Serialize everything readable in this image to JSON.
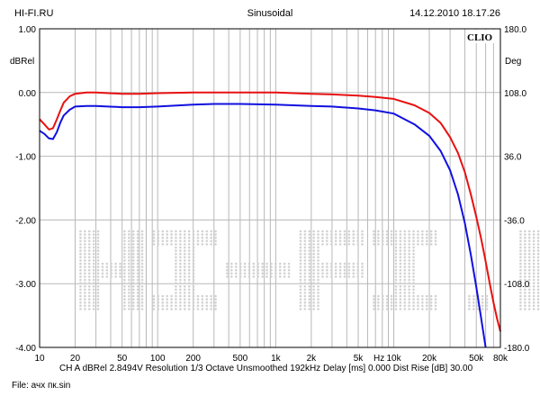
{
  "header": {
    "left": "HI-FI.RU",
    "center": "Sinusoidal",
    "right": "14.12.2010 18.17.26"
  },
  "footer": {
    "info": "CH A   dBRel 2.8494V   Resolution 1/3 Octave    Unsmoothed    192kHz    Delay [ms] 0.000    Dist Rise [dB] 30.00",
    "file": "File: ачх пк.sin"
  },
  "logo": "CLIO",
  "watermark": "HI-FI.RU",
  "colors": {
    "red": "#e81010",
    "blue": "#1010e0",
    "grid": "#b8b8b8",
    "frame": "#000000"
  },
  "chart_data": {
    "type": "line",
    "xscale": "log",
    "xlim": [
      10,
      80000
    ],
    "ylim": [
      -4,
      1
    ],
    "y2lim": [
      -180,
      180
    ],
    "ylabel": "dBRel",
    "y2label": "Deg",
    "grid": true,
    "xticks": [
      {
        "v": 10,
        "l": "10"
      },
      {
        "v": 20,
        "l": "20"
      },
      {
        "v": 50,
        "l": "50"
      },
      {
        "v": 100,
        "l": "100"
      },
      {
        "v": 200,
        "l": "200"
      },
      {
        "v": 500,
        "l": "500"
      },
      {
        "v": 1000,
        "l": "1k"
      },
      {
        "v": 2000,
        "l": "2k"
      },
      {
        "v": 5000,
        "l": "5k"
      },
      {
        "v": 7500,
        "l": "Hz"
      },
      {
        "v": 10000,
        "l": "10k"
      },
      {
        "v": 20000,
        "l": "20k"
      },
      {
        "v": 50000,
        "l": "50k"
      },
      {
        "v": 80000,
        "l": "80k"
      }
    ],
    "yticks": [
      {
        "v": 1,
        "l": "1.00"
      },
      {
        "v": 0,
        "l": "0.00"
      },
      {
        "v": -1,
        "l": "-1.00"
      },
      {
        "v": -2,
        "l": "-2.00"
      },
      {
        "v": -3,
        "l": "-3.00"
      },
      {
        "v": -4,
        "l": "-4.00"
      }
    ],
    "y2ticks": [
      {
        "v": 180,
        "l": "180.0"
      },
      {
        "v": 108,
        "l": "108.0"
      },
      {
        "v": 36,
        "l": "36.0"
      },
      {
        "v": -36,
        "l": "-36.0"
      },
      {
        "v": -108,
        "l": "-108.0"
      },
      {
        "v": -180,
        "l": "-180.0"
      }
    ],
    "series": [
      {
        "color": "#e81010",
        "points": [
          [
            10,
            -0.42
          ],
          [
            11,
            -0.5
          ],
          [
            12,
            -0.58
          ],
          [
            13,
            -0.56
          ],
          [
            14,
            -0.42
          ],
          [
            15,
            -0.28
          ],
          [
            16,
            -0.16
          ],
          [
            18,
            -0.06
          ],
          [
            20,
            -0.02
          ],
          [
            25,
            0.0
          ],
          [
            30,
            0.0
          ],
          [
            50,
            -0.02
          ],
          [
            70,
            -0.02
          ],
          [
            100,
            -0.01
          ],
          [
            200,
            0.0
          ],
          [
            300,
            0.0
          ],
          [
            500,
            0.0
          ],
          [
            1000,
            0.0
          ],
          [
            2000,
            -0.02
          ],
          [
            3000,
            -0.03
          ],
          [
            5000,
            -0.05
          ],
          [
            7000,
            -0.07
          ],
          [
            10000,
            -0.1
          ],
          [
            15000,
            -0.2
          ],
          [
            20000,
            -0.32
          ],
          [
            25000,
            -0.48
          ],
          [
            30000,
            -0.7
          ],
          [
            35000,
            -0.95
          ],
          [
            40000,
            -1.25
          ],
          [
            45000,
            -1.6
          ],
          [
            50000,
            -1.95
          ],
          [
            55000,
            -2.3
          ],
          [
            60000,
            -2.65
          ],
          [
            65000,
            -3.0
          ],
          [
            70000,
            -3.3
          ],
          [
            75000,
            -3.55
          ],
          [
            80000,
            -3.75
          ]
        ]
      },
      {
        "color": "#1010e0",
        "points": [
          [
            10,
            -0.6
          ],
          [
            11,
            -0.65
          ],
          [
            12,
            -0.72
          ],
          [
            13,
            -0.73
          ],
          [
            14,
            -0.62
          ],
          [
            15,
            -0.47
          ],
          [
            16,
            -0.36
          ],
          [
            18,
            -0.27
          ],
          [
            20,
            -0.22
          ],
          [
            25,
            -0.21
          ],
          [
            30,
            -0.21
          ],
          [
            50,
            -0.23
          ],
          [
            70,
            -0.23
          ],
          [
            100,
            -0.22
          ],
          [
            200,
            -0.19
          ],
          [
            300,
            -0.18
          ],
          [
            500,
            -0.18
          ],
          [
            1000,
            -0.19
          ],
          [
            2000,
            -0.21
          ],
          [
            3000,
            -0.22
          ],
          [
            5000,
            -0.25
          ],
          [
            7000,
            -0.28
          ],
          [
            10000,
            -0.33
          ],
          [
            15000,
            -0.5
          ],
          [
            20000,
            -0.68
          ],
          [
            25000,
            -0.92
          ],
          [
            30000,
            -1.22
          ],
          [
            35000,
            -1.6
          ],
          [
            40000,
            -2.05
          ],
          [
            45000,
            -2.55
          ],
          [
            50000,
            -3.05
          ],
          [
            55000,
            -3.55
          ],
          [
            60000,
            -4.0
          ]
        ]
      }
    ]
  }
}
